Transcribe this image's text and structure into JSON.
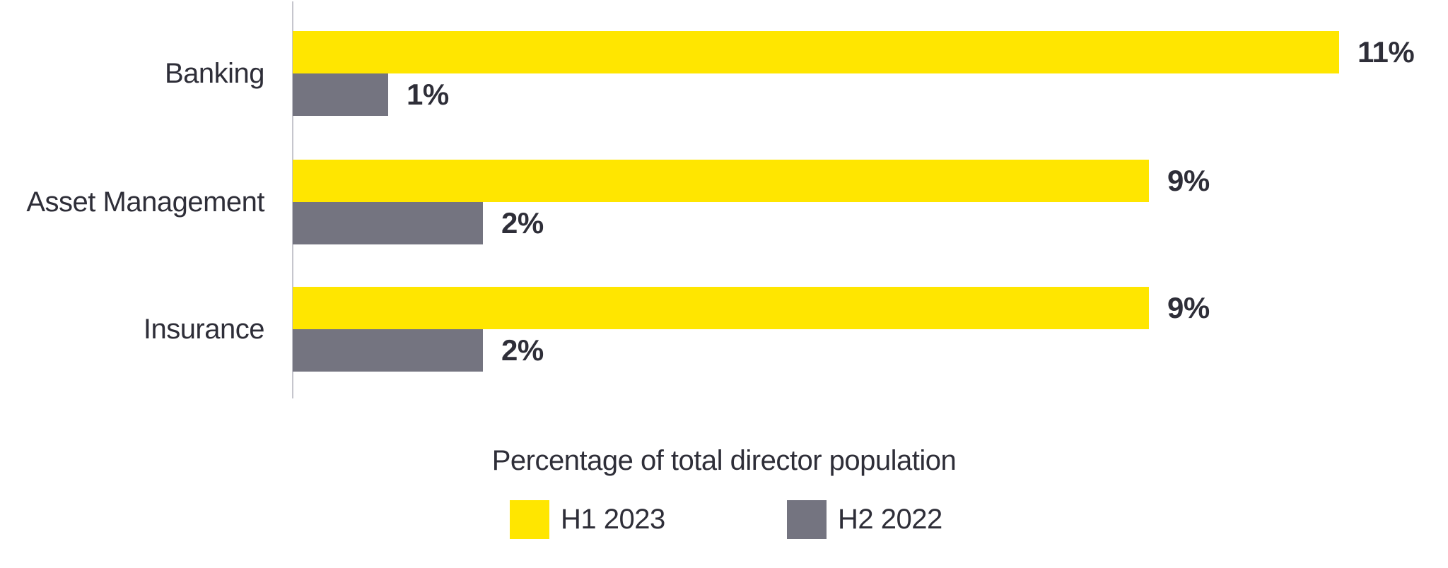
{
  "chart_data": {
    "type": "bar",
    "orientation": "horizontal",
    "xlabel": "Percentage of total director population",
    "categories": [
      "Banking",
      "Asset Management",
      "Insurance"
    ],
    "series": [
      {
        "name": "H1 2023",
        "color": "#FFE600",
        "values": [
          11,
          9,
          9
        ],
        "labels": [
          "11%",
          "9%",
          "9%"
        ]
      },
      {
        "name": "H2 2022",
        "color": "#747480",
        "values": [
          1,
          2,
          2
        ],
        "labels": [
          "1%",
          "2%",
          "2%"
        ]
      }
    ],
    "xlim": [
      0,
      12
    ],
    "grid": false,
    "legend_position": "bottom"
  },
  "legend": {
    "items": [
      {
        "label": "H1 2023",
        "color": "#FFE600"
      },
      {
        "label": "H2 2022",
        "color": "#747480"
      }
    ]
  },
  "colors": {
    "text": "#2E2E38",
    "axis_line": "#C6C6CD",
    "background": "#FFFFFF"
  }
}
